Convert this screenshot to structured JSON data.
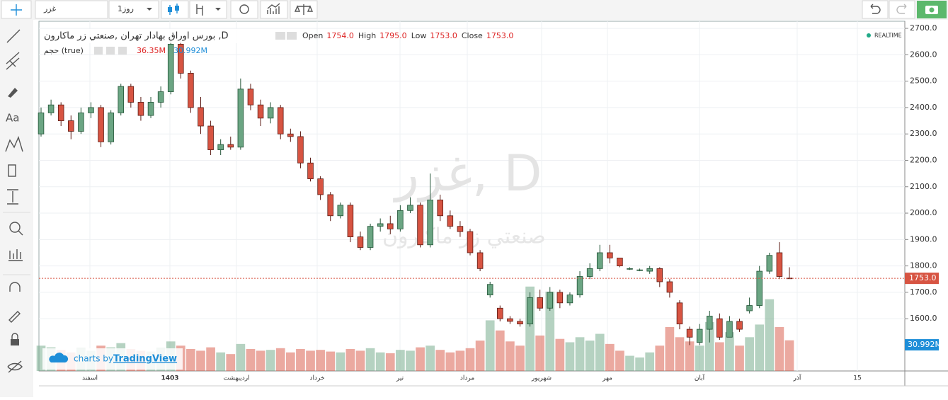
{
  "toolbar": {
    "symbol": "غزر",
    "interval": "1روز"
  },
  "chart_data": {
    "type": "candlestick",
    "title": "بورس اوراق بهادار تهران ,صنعتي زر ماكارون ,D",
    "ohlc": [
      {
        "name": "Open",
        "value": "1754.0"
      },
      {
        "name": "High",
        "value": "1795.0"
      },
      {
        "name": "Low",
        "value": "1753.0"
      },
      {
        "name": "Close",
        "value": "1753.0"
      }
    ],
    "volume_legend": {
      "name": "حجم (true)",
      "value": "36.35M",
      "ma": "30.992M"
    },
    "realtime": "REALTIME",
    "watermark": {
      "symbol": "غزر, D",
      "name": "صنعتي زر ماكارون"
    },
    "branding": {
      "prefix": "charts by",
      "brand": "TradingView"
    },
    "up_color": "#6ba583",
    "down_color": "#d75442",
    "ylim": [
      1402,
      2727
    ],
    "yticks": [
      {
        "value": 1600,
        "label": "1600.0"
      },
      {
        "value": 1700,
        "label": "1700.0"
      },
      {
        "value": 1800,
        "label": "1800.0"
      },
      {
        "value": 1900,
        "label": "1900.0"
      },
      {
        "value": 2000,
        "label": "2000.0"
      },
      {
        "value": 2100,
        "label": "2100.0"
      },
      {
        "value": 2200,
        "label": "2200.0"
      },
      {
        "value": 2300,
        "label": "2300.0"
      },
      {
        "value": 2400,
        "label": "2400.0"
      },
      {
        "value": 2500,
        "label": "2500.0"
      },
      {
        "value": 2600,
        "label": "2600.0"
      },
      {
        "value": 2700,
        "label": "2700.0"
      }
    ],
    "last_price": {
      "value": 1753,
      "label": "1753.0"
    },
    "volume_ylim": [
      0,
      104
    ],
    "last_volume": {
      "value": 30.992,
      "label": "30.992M"
    },
    "xtick_labels": [
      "اسفند",
      "1403",
      "اردیبهشت",
      "خرداد",
      "تیر",
      "مرداد",
      "شهریور",
      "مهر",
      "آبان",
      "آذر",
      "15"
    ],
    "candles": [
      {
        "o": 2300,
        "h": 2400,
        "l": 2290,
        "c": 2380,
        "v": 30
      },
      {
        "o": 2380,
        "h": 2430,
        "l": 2370,
        "c": 2410,
        "v": 28
      },
      {
        "o": 2410,
        "h": 2420,
        "l": 2330,
        "c": 2350,
        "v": 25
      },
      {
        "o": 2350,
        "h": 2370,
        "l": 2280,
        "c": 2310,
        "v": 22
      },
      {
        "o": 2310,
        "h": 2400,
        "l": 2300,
        "c": 2380,
        "v": 27
      },
      {
        "o": 2380,
        "h": 2420,
        "l": 2360,
        "c": 2400,
        "v": 24
      },
      {
        "o": 2400,
        "h": 2410,
        "l": 2250,
        "c": 2270,
        "v": 30
      },
      {
        "o": 2270,
        "h": 2390,
        "l": 2260,
        "c": 2380,
        "v": 28
      },
      {
        "o": 2380,
        "h": 2490,
        "l": 2370,
        "c": 2480,
        "v": 33
      },
      {
        "o": 2480,
        "h": 2490,
        "l": 2400,
        "c": 2420,
        "v": 26
      },
      {
        "o": 2420,
        "h": 2440,
        "l": 2350,
        "c": 2370,
        "v": 24
      },
      {
        "o": 2370,
        "h": 2440,
        "l": 2360,
        "c": 2420,
        "v": 23
      },
      {
        "o": 2420,
        "h": 2480,
        "l": 2400,
        "c": 2460,
        "v": 27
      },
      {
        "o": 2460,
        "h": 2670,
        "l": 2450,
        "c": 2640,
        "v": 35
      },
      {
        "o": 2640,
        "h": 2650,
        "l": 2510,
        "c": 2530,
        "v": 30
      },
      {
        "o": 2530,
        "h": 2540,
        "l": 2380,
        "c": 2400,
        "v": 26
      },
      {
        "o": 2400,
        "h": 2440,
        "l": 2300,
        "c": 2330,
        "v": 24
      },
      {
        "o": 2330,
        "h": 2350,
        "l": 2220,
        "c": 2240,
        "v": 28
      },
      {
        "o": 2240,
        "h": 2280,
        "l": 2220,
        "c": 2260,
        "v": 22
      },
      {
        "o": 2260,
        "h": 2290,
        "l": 2240,
        "c": 2250,
        "v": 20
      },
      {
        "o": 2250,
        "h": 2510,
        "l": 2240,
        "c": 2470,
        "v": 32
      },
      {
        "o": 2470,
        "h": 2490,
        "l": 2390,
        "c": 2410,
        "v": 26
      },
      {
        "o": 2410,
        "h": 2430,
        "l": 2330,
        "c": 2360,
        "v": 24
      },
      {
        "o": 2360,
        "h": 2420,
        "l": 2340,
        "c": 2400,
        "v": 25
      },
      {
        "o": 2400,
        "h": 2410,
        "l": 2280,
        "c": 2300,
        "v": 27
      },
      {
        "o": 2300,
        "h": 2320,
        "l": 2270,
        "c": 2290,
        "v": 22
      },
      {
        "o": 2290,
        "h": 2310,
        "l": 2170,
        "c": 2190,
        "v": 26
      },
      {
        "o": 2190,
        "h": 2210,
        "l": 2120,
        "c": 2130,
        "v": 24
      },
      {
        "o": 2130,
        "h": 2140,
        "l": 2050,
        "c": 2070,
        "v": 25
      },
      {
        "o": 2070,
        "h": 2080,
        "l": 1970,
        "c": 1990,
        "v": 23
      },
      {
        "o": 1990,
        "h": 2040,
        "l": 1980,
        "c": 2030,
        "v": 22
      },
      {
        "o": 2030,
        "h": 2040,
        "l": 1890,
        "c": 1910,
        "v": 26
      },
      {
        "o": 1910,
        "h": 1930,
        "l": 1860,
        "c": 1870,
        "v": 24
      },
      {
        "o": 1870,
        "h": 1960,
        "l": 1860,
        "c": 1950,
        "v": 27
      },
      {
        "o": 1950,
        "h": 1980,
        "l": 1930,
        "c": 1960,
        "v": 22
      },
      {
        "o": 1960,
        "h": 1990,
        "l": 1920,
        "c": 1940,
        "v": 21
      },
      {
        "o": 1940,
        "h": 2030,
        "l": 1930,
        "c": 2010,
        "v": 25
      },
      {
        "o": 2010,
        "h": 2060,
        "l": 2000,
        "c": 2030,
        "v": 24
      },
      {
        "o": 2030,
        "h": 2040,
        "l": 1870,
        "c": 1880,
        "v": 28
      },
      {
        "o": 1880,
        "h": 2150,
        "l": 1870,
        "c": 2050,
        "v": 30
      },
      {
        "o": 2050,
        "h": 2070,
        "l": 1970,
        "c": 1990,
        "v": 25
      },
      {
        "o": 1990,
        "h": 2010,
        "l": 1940,
        "c": 1950,
        "v": 22
      },
      {
        "o": 1950,
        "h": 1970,
        "l": 1910,
        "c": 1930,
        "v": 24
      },
      {
        "o": 1930,
        "h": 1940,
        "l": 1840,
        "c": 1850,
        "v": 27
      },
      {
        "o": 1850,
        "h": 1860,
        "l": 1780,
        "c": 1790,
        "v": 36
      },
      {
        "o": 1690,
        "h": 1740,
        "l": 1680,
        "c": 1730,
        "v": 60
      },
      {
        "o": 1640,
        "h": 1650,
        "l": 1590,
        "c": 1600,
        "v": 48
      },
      {
        "o": 1600,
        "h": 1610,
        "l": 1580,
        "c": 1590,
        "v": 35
      },
      {
        "o": 1590,
        "h": 1600,
        "l": 1570,
        "c": 1580,
        "v": 30
      },
      {
        "o": 1580,
        "h": 1700,
        "l": 1570,
        "c": 1680,
        "v": 100
      },
      {
        "o": 1680,
        "h": 1710,
        "l": 1630,
        "c": 1640,
        "v": 42
      },
      {
        "o": 1640,
        "h": 1720,
        "l": 1630,
        "c": 1700,
        "v": 94
      },
      {
        "o": 1700,
        "h": 1710,
        "l": 1640,
        "c": 1660,
        "v": 38
      },
      {
        "o": 1660,
        "h": 1700,
        "l": 1650,
        "c": 1690,
        "v": 34
      },
      {
        "o": 1690,
        "h": 1780,
        "l": 1680,
        "c": 1760,
        "v": 40
      },
      {
        "o": 1760,
        "h": 1810,
        "l": 1750,
        "c": 1790,
        "v": 36
      },
      {
        "o": 1790,
        "h": 1880,
        "l": 1780,
        "c": 1850,
        "v": 44
      },
      {
        "o": 1850,
        "h": 1880,
        "l": 1810,
        "c": 1830,
        "v": 32
      },
      {
        "o": 1830,
        "h": 1830,
        "l": 1795,
        "c": 1800,
        "v": 24
      },
      {
        "o": 1790,
        "h": 1795,
        "l": 1785,
        "c": 1790,
        "v": 18
      },
      {
        "o": 1785,
        "h": 1790,
        "l": 1780,
        "c": 1785,
        "v": 16
      },
      {
        "o": 1780,
        "h": 1800,
        "l": 1770,
        "c": 1790,
        "v": 22
      },
      {
        "o": 1790,
        "h": 1795,
        "l": 1720,
        "c": 1740,
        "v": 30
      },
      {
        "o": 1740,
        "h": 1750,
        "l": 1680,
        "c": 1700,
        "v": 52
      },
      {
        "o": 1660,
        "h": 1670,
        "l": 1560,
        "c": 1580,
        "v": 40
      },
      {
        "o": 1560,
        "h": 1570,
        "l": 1500,
        "c": 1530,
        "v": 35
      },
      {
        "o": 1510,
        "h": 1580,
        "l": 1500,
        "c": 1560,
        "v": 30
      },
      {
        "o": 1560,
        "h": 1630,
        "l": 1510,
        "c": 1610,
        "v": 58
      },
      {
        "o": 1600,
        "h": 1620,
        "l": 1520,
        "c": 1530,
        "v": 34
      },
      {
        "o": 1530,
        "h": 1610,
        "l": 1530,
        "c": 1590,
        "v": 46
      },
      {
        "o": 1590,
        "h": 1600,
        "l": 1550,
        "c": 1560,
        "v": 30
      },
      {
        "o": 1630,
        "h": 1680,
        "l": 1620,
        "c": 1650,
        "v": 40
      },
      {
        "o": 1650,
        "h": 1800,
        "l": 1640,
        "c": 1780,
        "v": 55
      },
      {
        "o": 1780,
        "h": 1850,
        "l": 1770,
        "c": 1840,
        "v": 85
      },
      {
        "o": 1850,
        "h": 1890,
        "l": 1750,
        "c": 1760,
        "v": 52
      },
      {
        "o": 1754,
        "h": 1795,
        "l": 1753,
        "c": 1753,
        "v": 36.35
      }
    ]
  }
}
